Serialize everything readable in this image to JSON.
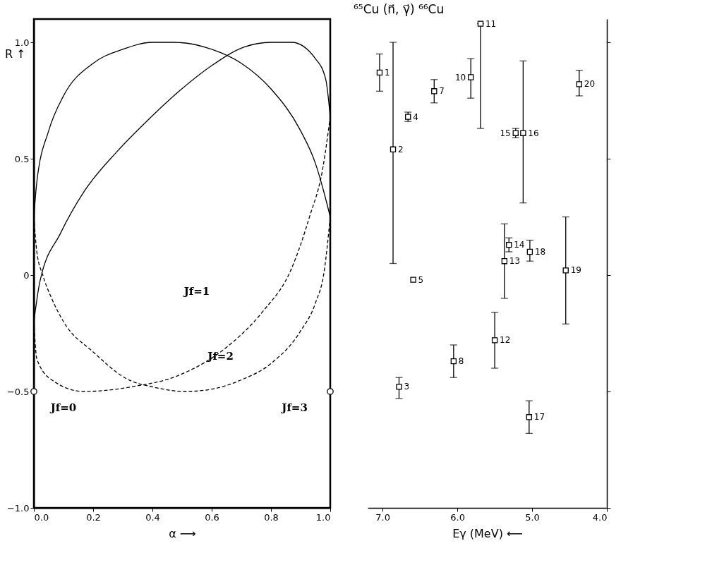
{
  "chart_data": [
    {
      "type": "line",
      "xlabel": "α ⟶",
      "ylabel": "R ↑",
      "xlim": [
        0.0,
        1.0
      ],
      "ylim": [
        -1.0,
        1.1
      ],
      "xticks": [
        {
          "value": 0.0,
          "label": "0.0"
        },
        0.2,
        0.4,
        0.6,
        0.8,
        {
          "value": 1.0,
          "label": "1.0"
        }
      ],
      "yticks": [
        {
          "value": -1.0,
          "label": "−1.0"
        },
        {
          "value": -0.5,
          "label": "−0.5"
        },
        0,
        0.5,
        {
          "value": 1.0,
          "label": "1.0"
        }
      ],
      "grid": false,
      "series": [
        {
          "type": "line",
          "color": "#000000",
          "line_style": "solid",
          "x": [
            0,
            0.01,
            0.05,
            0.1,
            0.2,
            0.3,
            0.4,
            0.47,
            0.6,
            0.7,
            0.8,
            0.9,
            0.95,
            0.98,
            1.0
          ],
          "values": [
            0.25,
            0.4,
            0.62,
            0.77,
            0.91,
            0.97,
            1.0,
            1.0,
            0.97,
            0.91,
            0.8,
            0.62,
            0.48,
            0.35,
            0.25
          ]
        },
        {
          "type": "line",
          "color": "#000000",
          "line_style": "dashed",
          "x": [
            0,
            0.01,
            0.03,
            0.06,
            0.1,
            0.2,
            0.32,
            0.4,
            0.51,
            0.6,
            0.7,
            0.8,
            0.9,
            0.95,
            0.98,
            1.0
          ],
          "values": [
            0.25,
            0.1,
            0.0,
            -0.1,
            -0.2,
            -0.33,
            -0.45,
            -0.48,
            -0.5,
            -0.49,
            -0.45,
            -0.38,
            -0.24,
            -0.12,
            0.02,
            0.25
          ]
        },
        {
          "type": "line",
          "color": "#000000",
          "line_style": "solid",
          "x": [
            0,
            0.02,
            0.09,
            0.17,
            0.28,
            0.38,
            0.49,
            0.6,
            0.71,
            0.8,
            0.87,
            0.95,
            0.985,
            1.0
          ],
          "values": [
            -0.2,
            -0.03,
            0.18,
            0.36,
            0.53,
            0.66,
            0.79,
            0.9,
            0.98,
            1.0,
            1.0,
            0.93,
            0.84,
            0.68
          ]
        },
        {
          "type": "line",
          "color": "#000000",
          "line_style": "dashed",
          "x": [
            0,
            0.01,
            0.06,
            0.17,
            0.33,
            0.49,
            0.66,
            0.77,
            0.87,
            0.93,
            0.975,
            1.0
          ],
          "values": [
            -0.2,
            -0.36,
            -0.45,
            -0.5,
            -0.48,
            -0.43,
            -0.3,
            -0.16,
            0.03,
            0.25,
            0.46,
            0.68
          ]
        },
        {
          "type": "scatter",
          "color": "#000000",
          "marker": "circle",
          "x": [
            0.0,
            1.0
          ],
          "values": [
            -0.5,
            -0.5
          ]
        }
      ],
      "annotations": [
        "Jf=0",
        "Jf=1",
        "Jf=2",
        "Jf=3"
      ]
    },
    {
      "type": "scatter",
      "title": "⁶⁵Cu (n⃗, γ⃗) ⁶⁶Cu",
      "xlabel": "Eγ (MeV) ⟵",
      "xlim": [
        7.2,
        4.0
      ],
      "ylim": [
        -1.0,
        1.1
      ],
      "xticks": [
        {
          "value": 7.0,
          "label": "7.0"
        },
        {
          "value": 6.0,
          "label": "6.0"
        },
        {
          "value": 5.0,
          "label": "5.0"
        },
        {
          "value": 4.0,
          "label": "4.0"
        }
      ],
      "yticks": [
        -1.0,
        -0.5,
        0,
        0.5,
        1.0
      ],
      "tick_labels": "x",
      "grid": false,
      "marker": "square",
      "series": [
        {
          "color": "#000000",
          "x": [
            7.04,
            6.86,
            6.78,
            6.66,
            6.59,
            6.31,
            6.05,
            5.82,
            5.69,
            5.5,
            5.37,
            5.31,
            5.22,
            5.12,
            5.04,
            5.03,
            4.55,
            4.37
          ],
          "values": [
            0.87,
            0.54,
            -0.48,
            0.68,
            -0.02,
            0.79,
            -0.37,
            0.85,
            1.08,
            -0.28,
            0.06,
            0.13,
            0.61,
            0.61,
            -0.61,
            0.1,
            0.02,
            0.82
          ],
          "errors": [
            [
              0.79,
              0.95
            ],
            [
              0.05,
              1.0
            ],
            [
              -0.53,
              -0.44
            ],
            [
              0.66,
              0.7
            ],
            null,
            [
              0.74,
              0.84
            ],
            [
              -0.44,
              -0.3
            ],
            [
              0.76,
              0.93
            ],
            [
              0.63,
              1.08
            ],
            [
              -0.4,
              -0.16
            ],
            [
              -0.1,
              0.22
            ],
            [
              0.1,
              0.16
            ],
            [
              0.59,
              0.63
            ],
            [
              0.31,
              0.92
            ],
            [
              -0.68,
              -0.54
            ],
            [
              0.06,
              0.15
            ],
            [
              -0.21,
              0.25
            ],
            [
              0.77,
              0.88
            ]
          ]
        }
      ],
      "annotations": [
        {
          "text": "1",
          "x": 7.04,
          "y": 0.87
        },
        {
          "text": "2",
          "x": 6.86,
          "y": 0.54
        },
        {
          "text": "3",
          "x": 6.78,
          "y": -0.48
        },
        {
          "text": "4",
          "x": 6.66,
          "y": 0.68
        },
        {
          "text": "5",
          "x": 6.59,
          "y": -0.02
        },
        {
          "text": "7",
          "x": 6.31,
          "y": 0.79
        },
        {
          "text": "8",
          "x": 6.05,
          "y": -0.37
        },
        {
          "text": "10",
          "x": 5.82,
          "y": 0.85
        },
        {
          "text": "11",
          "x": 5.69,
          "y": 1.08
        },
        {
          "text": "12",
          "x": 5.5,
          "y": -0.28
        },
        {
          "text": "13",
          "x": 5.37,
          "y": 0.06
        },
        {
          "text": "14",
          "x": 5.31,
          "y": 0.13
        },
        {
          "text": "15",
          "x": 5.22,
          "y": 0.61
        },
        {
          "text": "16",
          "x": 5.12,
          "y": 0.61
        },
        {
          "text": "17",
          "x": 5.04,
          "y": -0.61
        },
        {
          "text": "18",
          "x": 5.03,
          "y": 0.1
        },
        {
          "text": "19",
          "x": 4.55,
          "y": 0.02
        },
        {
          "text": "20",
          "x": 4.37,
          "y": 0.82
        }
      ]
    }
  ]
}
